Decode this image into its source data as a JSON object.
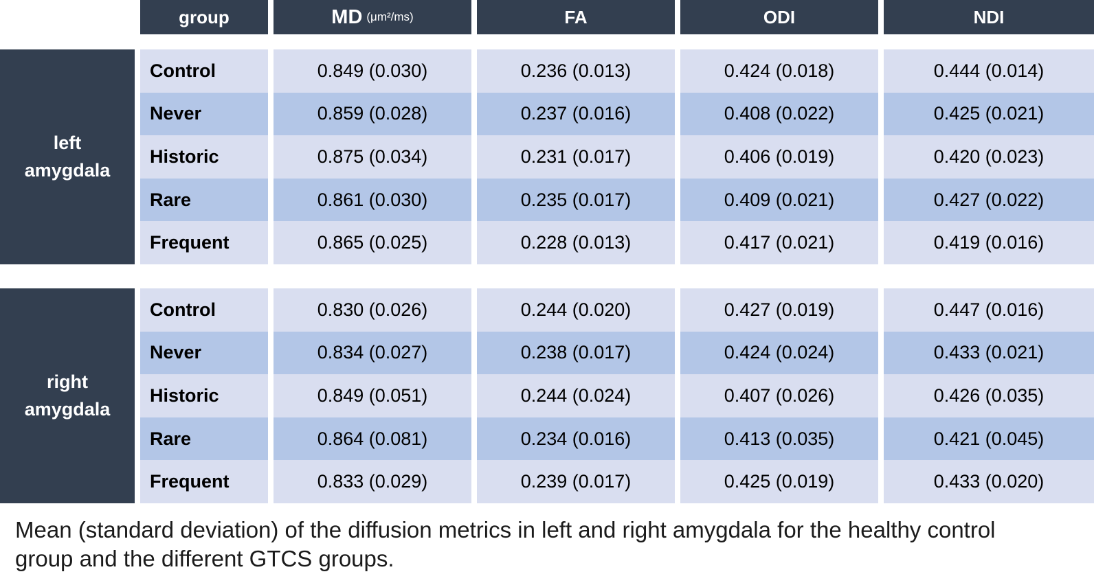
{
  "chart_data": {
    "type": "table",
    "header": {
      "group": "group",
      "md": "MD",
      "md_unit": "(μm²/ms)",
      "fa": "FA",
      "odi": "ODI",
      "ndi": "NDI"
    },
    "columns": [
      "group",
      "MD (μm²/ms)",
      "FA",
      "ODI",
      "NDI"
    ],
    "sections": [
      {
        "label_line1": "left",
        "label_line2": "amygdala",
        "rows": [
          {
            "group": "Control",
            "md": "0.849 (0.030)",
            "fa": "0.236 (0.013)",
            "odi": "0.424 (0.018)",
            "ndi": "0.444 (0.014)"
          },
          {
            "group": "Never",
            "md": "0.859 (0.028)",
            "fa": "0.237 (0.016)",
            "odi": "0.408 (0.022)",
            "ndi": "0.425 (0.021)"
          },
          {
            "group": "Historic",
            "md": "0.875 (0.034)",
            "fa": "0.231 (0.017)",
            "odi": "0.406 (0.019)",
            "ndi": "0.420 (0.023)"
          },
          {
            "group": "Rare",
            "md": "0.861 (0.030)",
            "fa": "0.235 (0.017)",
            "odi": "0.409 (0.021)",
            "ndi": "0.427 (0.022)"
          },
          {
            "group": "Frequent",
            "md": "0.865 (0.025)",
            "fa": "0.228 (0.013)",
            "odi": "0.417 (0.021)",
            "ndi": "0.419 (0.016)"
          }
        ]
      },
      {
        "label_line1": "right",
        "label_line2": "amygdala",
        "rows": [
          {
            "group": "Control",
            "md": "0.830 (0.026)",
            "fa": "0.244 (0.020)",
            "odi": "0.427 (0.019)",
            "ndi": "0.447 (0.016)"
          },
          {
            "group": "Never",
            "md": "0.834 (0.027)",
            "fa": "0.238 (0.017)",
            "odi": "0.424 (0.024)",
            "ndi": "0.433 (0.021)"
          },
          {
            "group": "Historic",
            "md": "0.849 (0.051)",
            "fa": "0.244 (0.024)",
            "odi": "0.407 (0.026)",
            "ndi": "0.426 (0.035)"
          },
          {
            "group": "Rare",
            "md": "0.864 (0.081)",
            "fa": "0.234 (0.016)",
            "odi": "0.413 (0.035)",
            "ndi": "0.421 (0.045)"
          },
          {
            "group": "Frequent",
            "md": "0.833 (0.029)",
            "fa": "0.239 (0.017)",
            "odi": "0.425 (0.019)",
            "ndi": "0.433 (0.020)"
          }
        ]
      }
    ],
    "caption": "Mean (standard deviation) of the diffusion metrics in left and right amygdala for the healthy control group and the different GTCS groups."
  },
  "colors": {
    "header_bg": "#333F50",
    "row_light": "#D9DEF0",
    "row_medium": "#B3C6E7",
    "header_text": "#FFFFFF",
    "body_text": "#000000",
    "caption_text": "#1B1B1B"
  }
}
